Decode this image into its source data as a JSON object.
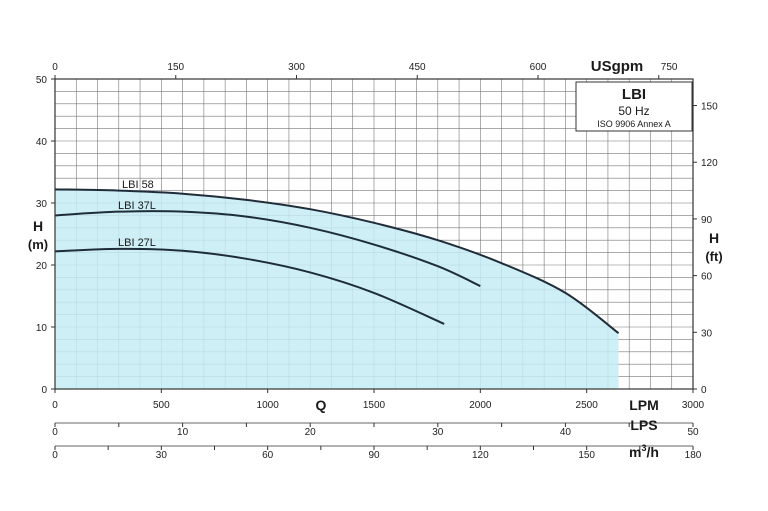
{
  "chart_data": {
    "type": "area",
    "title": "LBI",
    "info_box": {
      "title": "LBI",
      "frequency": "50 Hz",
      "standard": "ISO 9906 Annex A"
    },
    "x_axis": {
      "label": "Q",
      "units_lpm": "LPM",
      "units_lps": "LPS",
      "units_m3h_base": "m",
      "units_m3h_sup": "3",
      "units_m3h_tail": "/h",
      "units_usgpm": "USgpm",
      "lpm_range": [
        0,
        3000
      ],
      "lpm_ticks": [
        "0",
        "500",
        "1000",
        "1500",
        "2000",
        "2500",
        "3000"
      ],
      "lps_ticks": [
        "0",
        "10",
        "20",
        "30",
        "40",
        "50"
      ],
      "m3h_ticks": [
        "0",
        "30",
        "60",
        "90",
        "120",
        "150",
        "180"
      ],
      "usgpm_ticks": [
        "0",
        "150",
        "300",
        "450",
        "600",
        "750"
      ]
    },
    "y_axis": {
      "label": "H",
      "unit_m": "(m)",
      "unit_ft": "(ft)",
      "range_m": [
        0,
        50
      ],
      "m_ticks": [
        "0",
        "10",
        "20",
        "30",
        "40",
        "50"
      ],
      "ft_ticks": [
        "0",
        "30",
        "60",
        "90",
        "120",
        "150"
      ]
    },
    "grid": true,
    "fill_color": "#c6ecf4",
    "line_color": "#1f2d3a",
    "series": [
      {
        "name": "LBI 58",
        "x": [
          0,
          300,
          600,
          900,
          1200,
          1500,
          1800,
          2100,
          2400,
          2650
        ],
        "y": [
          32.2,
          32.0,
          31.5,
          30.5,
          29.0,
          26.8,
          24.0,
          20.3,
          15.5,
          9.0
        ]
      },
      {
        "name": "LBI 37L",
        "x": [
          0,
          300,
          600,
          900,
          1200,
          1500,
          1800,
          2000
        ],
        "y": [
          28.0,
          28.6,
          28.6,
          27.8,
          26.0,
          23.3,
          19.8,
          16.6
        ]
      },
      {
        "name": "LBI 27L",
        "x": [
          0,
          300,
          600,
          900,
          1200,
          1500,
          1830
        ],
        "y": [
          22.2,
          22.6,
          22.3,
          21.0,
          18.8,
          15.5,
          10.5
        ]
      }
    ]
  }
}
